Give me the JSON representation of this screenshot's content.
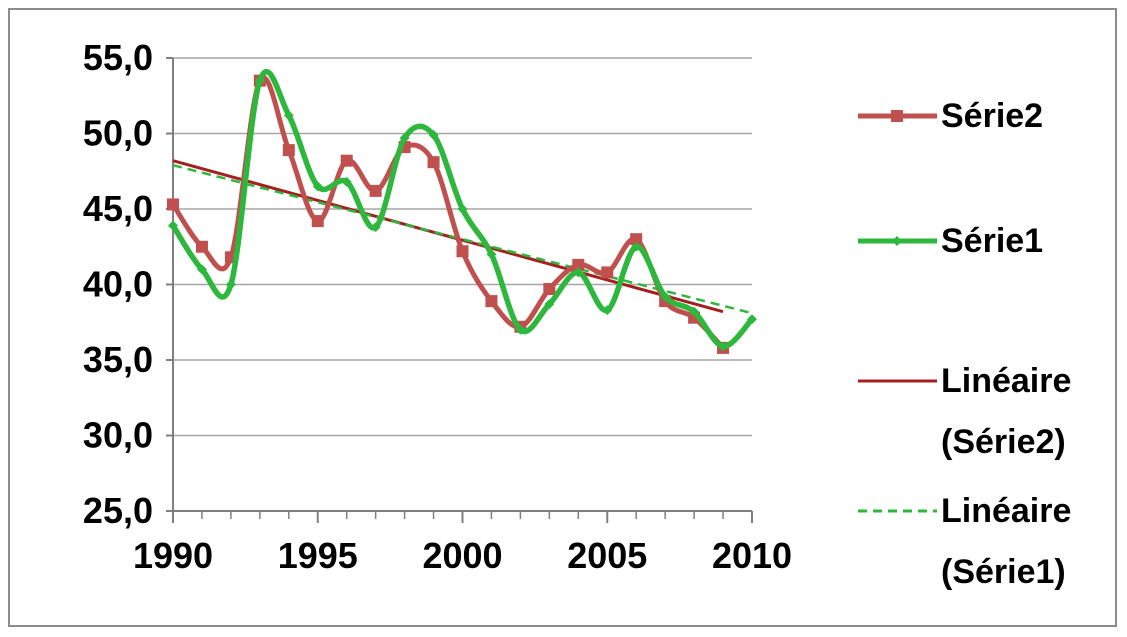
{
  "chart_data": {
    "type": "line",
    "title": "",
    "xlabel": "",
    "ylabel": "",
    "xlim": [
      1990,
      2010
    ],
    "ylim": [
      25.0,
      55.0
    ],
    "x_ticks": [
      1990,
      1995,
      2000,
      2005,
      2010
    ],
    "x_tick_labels": [
      "1990",
      "1995",
      "2000",
      "2005",
      "2010"
    ],
    "y_ticks": [
      25,
      30,
      35,
      40,
      45,
      50,
      55
    ],
    "y_tick_labels": [
      "25,0",
      "30,0",
      "35,0",
      "40,0",
      "45,0",
      "50,0",
      "55,0"
    ],
    "grid": "horizontal",
    "legend_position": "right",
    "series": [
      {
        "name": "Série2",
        "color": "#c0504d",
        "marker": "square",
        "smooth": true,
        "x": [
          1990,
          1991,
          1992,
          1993,
          1994,
          1995,
          1996,
          1997,
          1998,
          1999,
          2000,
          2001,
          2002,
          2003,
          2004,
          2005,
          2006,
          2007,
          2008,
          2009
        ],
        "y": [
          45.3,
          42.5,
          41.8,
          53.5,
          48.9,
          44.2,
          48.2,
          46.2,
          49.1,
          48.1,
          42.2,
          38.9,
          37.2,
          39.7,
          41.3,
          40.8,
          43.0,
          38.9,
          37.8,
          35.8
        ]
      },
      {
        "name": "Série1",
        "color": "#2db83d",
        "marker": "diamond",
        "smooth": true,
        "x": [
          1990,
          1991,
          1992,
          1993,
          1994,
          1995,
          1996,
          1997,
          1998,
          1999,
          2000,
          2001,
          2002,
          2003,
          2004,
          2005,
          2006,
          2007,
          2008,
          2009,
          2010
        ],
        "y": [
          43.9,
          41.0,
          40.0,
          53.5,
          51.2,
          46.5,
          46.8,
          43.8,
          49.7,
          49.9,
          45.0,
          42.0,
          37.0,
          38.7,
          40.8,
          38.3,
          42.5,
          39.2,
          38.2,
          35.9,
          37.7
        ]
      },
      {
        "name": "Linéaire (Série2)",
        "color": "#a4201f",
        "style": "solid",
        "trendline_of": "Série2",
        "x": [
          1990,
          2009
        ],
        "y": [
          48.2,
          38.2
        ]
      },
      {
        "name": "Linéaire (Série1)",
        "color": "#2db83d",
        "style": "dashed",
        "trendline_of": "Série1",
        "x": [
          1990,
          2010
        ],
        "y": [
          47.9,
          38.1
        ]
      }
    ],
    "legend": {
      "entries": [
        {
          "key": "Série2",
          "lines": [
            "Série2"
          ]
        },
        {
          "key": "Série1",
          "lines": [
            "Série1"
          ]
        },
        {
          "key": "Linéaire (Série2)",
          "lines": [
            "Linéaire",
            "(Série2)"
          ]
        },
        {
          "key": "Linéaire (Série1)",
          "lines": [
            "Linéaire",
            "(Série1)"
          ]
        }
      ]
    },
    "colors": {
      "axis": "#808080",
      "grid": "#a6a6a6",
      "text": "#000000"
    }
  }
}
